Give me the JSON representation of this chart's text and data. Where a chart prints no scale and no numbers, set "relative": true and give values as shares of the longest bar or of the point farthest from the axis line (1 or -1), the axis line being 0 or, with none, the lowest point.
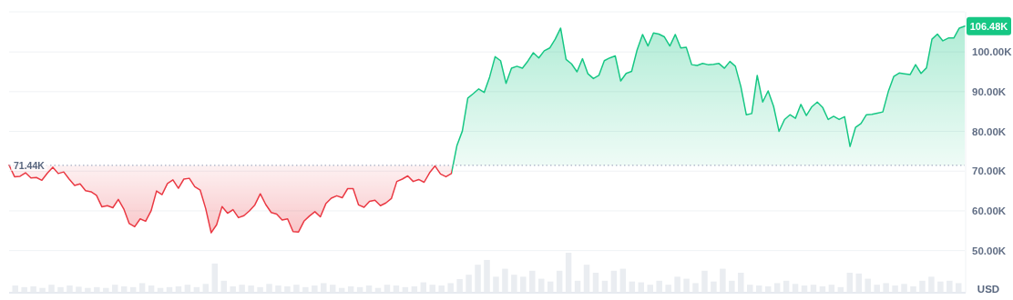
{
  "chart_data": [
    {
      "type": "area",
      "ylabel": "USD",
      "tick_labels": "y",
      "grid": "y",
      "categories": [
        null,
        null,
        null,
        null,
        null,
        null,
        null,
        null,
        null,
        null,
        null,
        null,
        null,
        null,
        null,
        null,
        null,
        null,
        null,
        null,
        null,
        null,
        null,
        null,
        null,
        null,
        null,
        null,
        null,
        null,
        null,
        null,
        null,
        null,
        null,
        null,
        null,
        null,
        null,
        null,
        null,
        null,
        null,
        null,
        null,
        null,
        null,
        null,
        null,
        null,
        null,
        null,
        null,
        null,
        null,
        null,
        null,
        null,
        null,
        null,
        null,
        null,
        null,
        null,
        null,
        null,
        null,
        null,
        null,
        null,
        null,
        null,
        null,
        null,
        null,
        null,
        null,
        null,
        null,
        null,
        null,
        null,
        null,
        null,
        null,
        null,
        null,
        null,
        null,
        null,
        null,
        null,
        null,
        null,
        null,
        null,
        null,
        null,
        null,
        null,
        null,
        null,
        null,
        null,
        null,
        null,
        null,
        null,
        null,
        null,
        null,
        null,
        null,
        null,
        null,
        null,
        null,
        null,
        null,
        null,
        null,
        null,
        null,
        null,
        null,
        null,
        null,
        null,
        null,
        null,
        null,
        null,
        null,
        null,
        null,
        null,
        null,
        null,
        null,
        null,
        null,
        null,
        null,
        null,
        null,
        null,
        null,
        null,
        null,
        null,
        null,
        null,
        null,
        null,
        null,
        null,
        null,
        null,
        null,
        null,
        null,
        null,
        null,
        null,
        null,
        null,
        null,
        null,
        null,
        null,
        null,
        null,
        null,
        null,
        null,
        null
      ],
      "values": [
        71.5,
        68.6,
        68.7,
        69.6,
        68.3,
        68.4,
        67.7,
        69.5,
        71.0,
        69.4,
        69.8,
        68.0,
        66.4,
        66.8,
        65.1,
        64.8,
        63.9,
        61.0,
        61.3,
        60.8,
        62.9,
        60.5,
        56.8,
        56.0,
        58.0,
        57.4,
        60.0,
        65.0,
        64.1,
        66.9,
        67.8,
        65.7,
        68.0,
        68.2,
        66.1,
        65.2,
        60.6,
        54.5,
        56.5,
        61.1,
        59.4,
        60.3,
        58.3,
        58.8,
        60.0,
        61.5,
        64.3,
        61.6,
        59.6,
        59.2,
        57.7,
        58.0,
        54.8,
        54.7,
        57.4,
        58.7,
        59.8,
        58.5,
        61.8,
        63.2,
        63.8,
        63.3,
        65.6,
        65.6,
        61.5,
        60.9,
        62.4,
        62.7,
        61.3,
        62.0,
        63.1,
        67.4,
        68.0,
        68.8,
        67.4,
        67.9,
        67.2,
        69.6,
        71.3,
        69.3,
        68.6,
        69.4,
        76.4,
        80.1,
        88.4,
        89.5,
        90.7,
        89.8,
        93.7,
        98.8,
        97.8,
        92.1,
        95.9,
        96.4,
        95.9,
        97.7,
        99.8,
        98.5,
        100.3,
        101.0,
        103.2,
        106.0,
        98.1,
        97.0,
        95.0,
        98.3,
        94.5,
        93.3,
        94.1,
        97.8,
        98.5,
        99.0,
        92.7,
        94.6,
        95.1,
        100.5,
        104.4,
        101.5,
        104.8,
        104.5,
        103.8,
        101.5,
        104.4,
        101.0,
        101.2,
        96.8,
        96.6,
        97.1,
        96.8,
        96.9,
        97.1,
        95.9,
        97.6,
        96.4,
        91.3,
        84.2,
        84.5,
        94.1,
        87.4,
        90.2,
        86.3,
        80.0,
        83.0,
        84.2,
        83.3,
        86.8,
        84.0,
        86.2,
        87.4,
        86.0,
        83.0,
        83.8,
        83.0,
        83.7,
        76.2,
        81.0,
        82.0,
        84.2,
        84.3,
        84.6,
        84.9,
        90.0,
        93.8,
        94.7,
        94.5,
        94.3,
        96.8,
        94.6,
        96.0,
        103.2,
        104.5,
        102.8,
        103.5,
        103.5,
        106.0,
        106.48
      ],
      "colors": [
        "#ea3943",
        "#ea3943",
        "#ea3943",
        "#ea3943",
        "#ea3943",
        "#ea3943",
        "#ea3943",
        "#ea3943",
        "#ea3943",
        "#ea3943",
        "#ea3943",
        "#ea3943",
        "#ea3943",
        "#ea3943",
        "#ea3943",
        "#ea3943",
        "#ea3943",
        "#ea3943",
        "#ea3943",
        "#ea3943",
        "#ea3943",
        "#ea3943",
        "#ea3943",
        "#ea3943",
        "#ea3943",
        "#ea3943",
        "#ea3943",
        "#ea3943",
        "#ea3943",
        "#ea3943",
        "#ea3943",
        "#ea3943",
        "#ea3943",
        "#ea3943",
        "#ea3943",
        "#ea3943",
        "#ea3943",
        "#ea3943",
        "#ea3943",
        "#ea3943",
        "#ea3943",
        "#ea3943",
        "#ea3943",
        "#ea3943",
        "#ea3943",
        "#ea3943",
        "#ea3943",
        "#ea3943",
        "#ea3943",
        "#ea3943",
        "#ea3943",
        "#ea3943",
        "#ea3943",
        "#ea3943",
        "#ea3943",
        "#ea3943",
        "#ea3943",
        "#ea3943",
        "#ea3943",
        "#ea3943",
        "#ea3943",
        "#ea3943",
        "#ea3943",
        "#ea3943",
        "#ea3943",
        "#ea3943",
        "#ea3943",
        "#ea3943",
        "#ea3943",
        "#ea3943",
        "#ea3943",
        "#ea3943",
        "#ea3943",
        "#ea3943",
        "#ea3943",
        "#ea3943",
        "#ea3943",
        "#ea3943",
        "#ea3943",
        "#ea3943",
        "#ea3943",
        "#ea3943",
        "#16c784",
        "#16c784",
        "#16c784",
        "#16c784",
        "#16c784",
        "#16c784",
        "#16c784",
        "#16c784",
        "#16c784",
        "#16c784",
        "#16c784",
        "#16c784",
        "#16c784",
        "#16c784",
        "#16c784",
        "#16c784",
        "#16c784",
        "#16c784",
        "#16c784",
        "#16c784",
        "#16c784",
        "#16c784",
        "#16c784",
        "#16c784",
        "#16c784",
        "#16c784",
        "#16c784",
        "#16c784",
        "#16c784",
        "#16c784",
        "#16c784",
        "#16c784",
        "#16c784",
        "#16c784",
        "#16c784",
        "#16c784",
        "#16c784",
        "#16c784",
        "#16c784",
        "#16c784",
        "#16c784",
        "#16c784",
        "#16c784",
        "#16c784",
        "#16c784",
        "#16c784",
        "#16c784",
        "#16c784",
        "#16c784",
        "#16c784",
        "#16c784",
        "#16c784",
        "#16c784",
        "#16c784",
        "#16c784",
        "#16c784",
        "#16c784",
        "#16c784",
        "#16c784",
        "#16c784",
        "#16c784",
        "#16c784",
        "#16c784",
        "#16c784",
        "#16c784",
        "#16c784",
        "#16c784",
        "#16c784",
        "#16c784",
        "#16c784",
        "#16c784",
        "#16c784",
        "#16c784",
        "#16c784",
        "#16c784",
        "#16c784",
        "#16c784",
        "#16c784",
        "#16c784",
        "#16c784",
        "#16c784",
        "#16c784",
        "#16c784",
        "#16c784",
        "#16c784",
        "#16c784",
        "#16c784",
        "#16c784",
        "#16c784",
        "#16c784",
        "#16c784",
        "#16c784",
        "#16c784",
        "#16c784"
      ],
      "ylim": [
        39.4,
        110.1
      ],
      "yticks": [
        {
          "value": 50,
          "label": "50.00K"
        },
        {
          "value": 60,
          "label": "60.00K"
        },
        {
          "value": 70,
          "label": "70.00K"
        },
        {
          "value": 80,
          "label": "80.00K"
        },
        {
          "value": 90,
          "label": "90.00K"
        },
        {
          "value": 100,
          "label": "100.00K"
        }
      ],
      "ref_lines": [
        {
          "axis": "y",
          "value": 71.44,
          "label": "71.44K",
          "line_style": "dotted",
          "color": "#a6b0c3"
        }
      ],
      "annotations": [
        "106.48K"
      ]
    },
    {
      "type": "bar",
      "relative": true,
      "tick_labels": false,
      "color": "#eaedf1",
      "categories": [
        null,
        null,
        null,
        null,
        null,
        null,
        null,
        null,
        null,
        null,
        null,
        null,
        null,
        null,
        null,
        null,
        null,
        null,
        null,
        null,
        null,
        null,
        null,
        null,
        null,
        null,
        null,
        null,
        null,
        null,
        null,
        null,
        null,
        null,
        null,
        null,
        null,
        null,
        null,
        null,
        null,
        null,
        null,
        null,
        null,
        null,
        null,
        null,
        null,
        null,
        null,
        null,
        null,
        null,
        null,
        null,
        null,
        null,
        null,
        null,
        null,
        null,
        null,
        null,
        null,
        null,
        null,
        null,
        null,
        null,
        null,
        null,
        null,
        null,
        null,
        null,
        null,
        null,
        null,
        null,
        null,
        null,
        null,
        null,
        null,
        null,
        null,
        null,
        null,
        null,
        null,
        null,
        null,
        null,
        null,
        null,
        null,
        null,
        null,
        null,
        null,
        null,
        null,
        null,
        null
      ],
      "values": [
        0.18,
        0.14,
        0.16,
        0.12,
        0.2,
        0.14,
        0.18,
        0.15,
        0.12,
        0.14,
        0.12,
        0.2,
        0.16,
        0.14,
        0.24,
        0.18,
        0.12,
        0.14,
        0.16,
        0.2,
        0.14,
        0.22,
        0.73,
        0.3,
        0.16,
        0.2,
        0.18,
        0.14,
        0.22,
        0.18,
        0.16,
        0.2,
        0.14,
        0.18,
        0.24,
        0.2,
        0.12,
        0.16,
        0.14,
        0.18,
        0.12,
        0.2,
        0.18,
        0.14,
        0.16,
        0.26,
        0.2,
        0.18,
        0.24,
        0.34,
        0.45,
        0.7,
        0.82,
        0.4,
        0.6,
        0.45,
        0.4,
        0.55,
        0.35,
        0.28,
        0.55,
        1.0,
        0.3,
        0.7,
        0.5,
        0.3,
        0.55,
        0.6,
        0.28,
        0.26,
        0.2,
        0.3,
        0.2,
        0.4,
        0.35,
        0.24,
        0.55,
        0.28,
        0.6,
        0.3,
        0.5,
        0.2,
        0.18,
        0.16,
        0.24,
        0.3,
        0.22,
        0.18,
        0.2,
        0.16,
        0.2,
        0.14,
        0.5,
        0.48,
        0.35,
        0.2,
        0.24,
        0.18,
        0.22,
        0.16,
        0.3,
        0.4,
        0.28,
        0.3,
        0.24
      ]
    }
  ]
}
